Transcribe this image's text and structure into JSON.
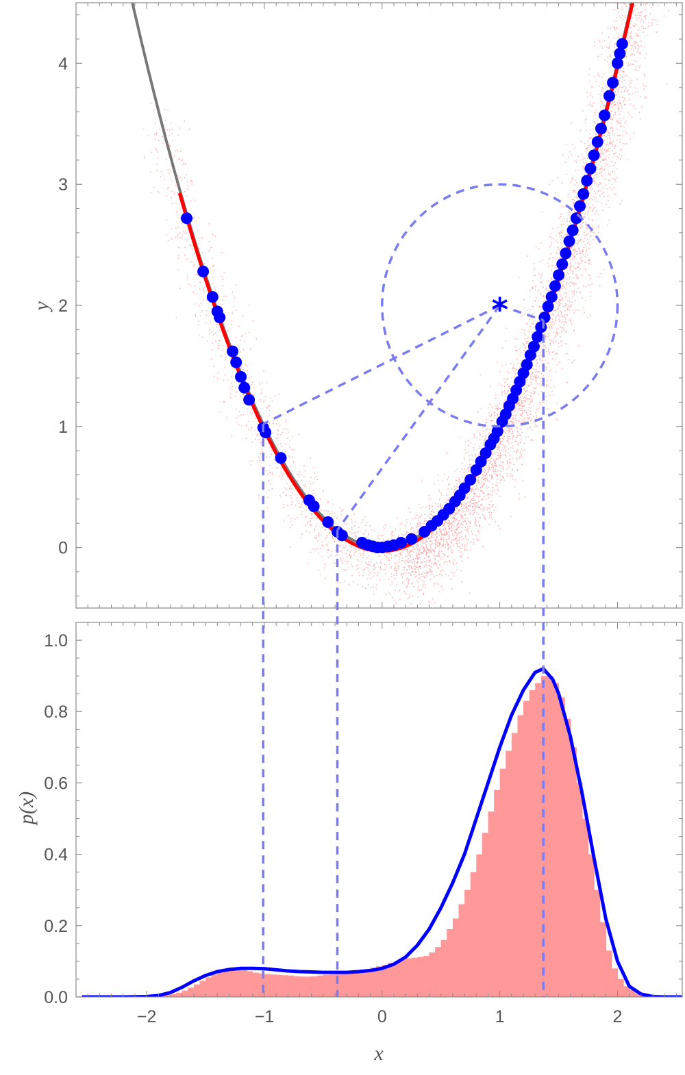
{
  "chart_data": [
    {
      "type": "scatter",
      "ylabel": "y",
      "xlim": [
        -2.6,
        2.55
      ],
      "ylim": [
        -0.5,
        4.5
      ],
      "yticks": [
        {
          "v": 0,
          "label": "0"
        },
        {
          "v": 1,
          "label": "1"
        },
        {
          "v": 2,
          "label": "2"
        },
        {
          "v": 3,
          "label": "3"
        },
        {
          "v": 4,
          "label": "4"
        }
      ],
      "curve": {
        "function": "y = x^2",
        "color": "#777777"
      },
      "noise_color": "#ff0000",
      "fit_color": "#ff0000",
      "point_color": "#0000ff",
      "points": {
        "x": [
          -1.66,
          -1.52,
          -1.44,
          -1.4,
          -1.38,
          -1.27,
          -1.24,
          -1.2,
          -1.17,
          -1.13,
          -1.01,
          -0.99,
          -0.86,
          -0.62,
          -0.58,
          -0.46,
          -0.38,
          -0.34,
          -0.17,
          -0.12,
          -0.08,
          -0.04,
          0.0,
          0.05,
          0.1,
          0.16,
          0.25,
          0.36,
          0.42,
          0.47,
          0.52,
          0.57,
          0.62,
          0.66,
          0.7,
          0.75,
          0.8,
          0.84,
          0.88,
          0.92,
          0.95,
          0.98,
          1.02,
          1.05,
          1.08,
          1.11,
          1.14,
          1.17,
          1.2,
          1.23,
          1.26,
          1.29,
          1.32,
          1.35,
          1.38,
          1.41,
          1.44,
          1.47,
          1.5,
          1.53,
          1.56,
          1.59,
          1.62,
          1.65,
          1.68,
          1.71,
          1.74,
          1.77,
          1.8,
          1.83,
          1.86,
          1.89,
          1.93,
          1.96,
          2.0,
          2.02,
          2.04
        ],
        "y": [
          2.72,
          2.28,
          2.07,
          1.95,
          1.9,
          1.62,
          1.53,
          1.41,
          1.32,
          1.22,
          0.99,
          0.95,
          0.74,
          0.39,
          0.34,
          0.21,
          0.13,
          0.1,
          0.04,
          0.02,
          0.01,
          0.0,
          0.0,
          0.01,
          0.02,
          0.04,
          0.07,
          0.13,
          0.18,
          0.22,
          0.27,
          0.32,
          0.38,
          0.43,
          0.49,
          0.56,
          0.64,
          0.71,
          0.78,
          0.85,
          0.9,
          0.96,
          1.04,
          1.1,
          1.17,
          1.23,
          1.3,
          1.37,
          1.44,
          1.51,
          1.59,
          1.66,
          1.74,
          1.82,
          1.9,
          1.99,
          2.07,
          2.16,
          2.25,
          2.34,
          2.43,
          2.53,
          2.62,
          2.72,
          2.82,
          2.92,
          3.03,
          3.13,
          3.24,
          3.35,
          3.46,
          3.57,
          3.73,
          3.84,
          4.0,
          4.08,
          4.16
        ]
      },
      "annotation": {
        "target_point": [
          1.0,
          2.0
        ],
        "target_marker": "*",
        "circle_radius": 1.0,
        "foot_x": [
          -1.01,
          -0.38,
          1.37
        ],
        "color": "#7b7bf0"
      }
    },
    {
      "type": "bar",
      "xlabel": "x",
      "ylabel": "p(x)",
      "xlim": [
        -2.6,
        2.55
      ],
      "ylim": [
        0,
        1.05
      ],
      "xticks": [
        {
          "v": -2,
          "label": "−2"
        },
        {
          "v": -1,
          "label": "−1"
        },
        {
          "v": 0,
          "label": "0"
        },
        {
          "v": 1,
          "label": "1"
        },
        {
          "v": 2,
          "label": "2"
        }
      ],
      "yticks": [
        {
          "v": 0,
          "label": "0.0"
        },
        {
          "v": 0.2,
          "label": "0.2"
        },
        {
          "v": 0.4,
          "label": "0.4"
        },
        {
          "v": 0.6,
          "label": "0.6"
        },
        {
          "v": 0.8,
          "label": "0.8"
        },
        {
          "v": 1.0,
          "label": "1.0"
        }
      ],
      "histogram": {
        "bin_start": -2.0,
        "bin_width": 0.05,
        "color": "#ff9999",
        "values": [
          0.001,
          0.002,
          0.003,
          0.005,
          0.008,
          0.012,
          0.018,
          0.026,
          0.035,
          0.045,
          0.055,
          0.063,
          0.068,
          0.072,
          0.075,
          0.076,
          0.075,
          0.072,
          0.068,
          0.066,
          0.064,
          0.063,
          0.062,
          0.061,
          0.06,
          0.058,
          0.057,
          0.057,
          0.058,
          0.06,
          0.062,
          0.063,
          0.064,
          0.066,
          0.068,
          0.071,
          0.074,
          0.078,
          0.082,
          0.086,
          0.09,
          0.095,
          0.1,
          0.104,
          0.108,
          0.11,
          0.112,
          0.115,
          0.125,
          0.14,
          0.16,
          0.19,
          0.22,
          0.26,
          0.3,
          0.35,
          0.4,
          0.46,
          0.52,
          0.58,
          0.64,
          0.69,
          0.74,
          0.79,
          0.83,
          0.86,
          0.88,
          0.9,
          0.9,
          0.88,
          0.84,
          0.78,
          0.7,
          0.6,
          0.5,
          0.4,
          0.3,
          0.21,
          0.13,
          0.08,
          0.05,
          0.03,
          0.02,
          0.01,
          0.005
        ]
      },
      "density": {
        "color": "#0000ff",
        "x": [
          -2.55,
          -2.4,
          -2.2,
          -2.0,
          -1.9,
          -1.8,
          -1.7,
          -1.6,
          -1.5,
          -1.4,
          -1.3,
          -1.2,
          -1.1,
          -1.0,
          -0.9,
          -0.8,
          -0.7,
          -0.6,
          -0.5,
          -0.4,
          -0.3,
          -0.2,
          -0.1,
          0.0,
          0.1,
          0.2,
          0.3,
          0.4,
          0.5,
          0.6,
          0.7,
          0.8,
          0.9,
          1.0,
          1.1,
          1.2,
          1.3,
          1.37,
          1.45,
          1.5,
          1.6,
          1.7,
          1.8,
          1.9,
          2.0,
          2.1,
          2.2,
          2.3,
          2.4,
          2.55
        ],
        "y": [
          0.0,
          0.0,
          0.0,
          0.001,
          0.004,
          0.012,
          0.027,
          0.045,
          0.06,
          0.071,
          0.077,
          0.08,
          0.08,
          0.079,
          0.076,
          0.073,
          0.071,
          0.07,
          0.069,
          0.069,
          0.069,
          0.071,
          0.074,
          0.08,
          0.092,
          0.112,
          0.145,
          0.19,
          0.25,
          0.32,
          0.4,
          0.5,
          0.6,
          0.7,
          0.79,
          0.86,
          0.91,
          0.92,
          0.89,
          0.85,
          0.73,
          0.57,
          0.39,
          0.22,
          0.1,
          0.03,
          0.008,
          0.001,
          0.0,
          0.0
        ]
      },
      "guide_lines_x": [
        -1.01,
        -0.38,
        1.37
      ]
    }
  ]
}
